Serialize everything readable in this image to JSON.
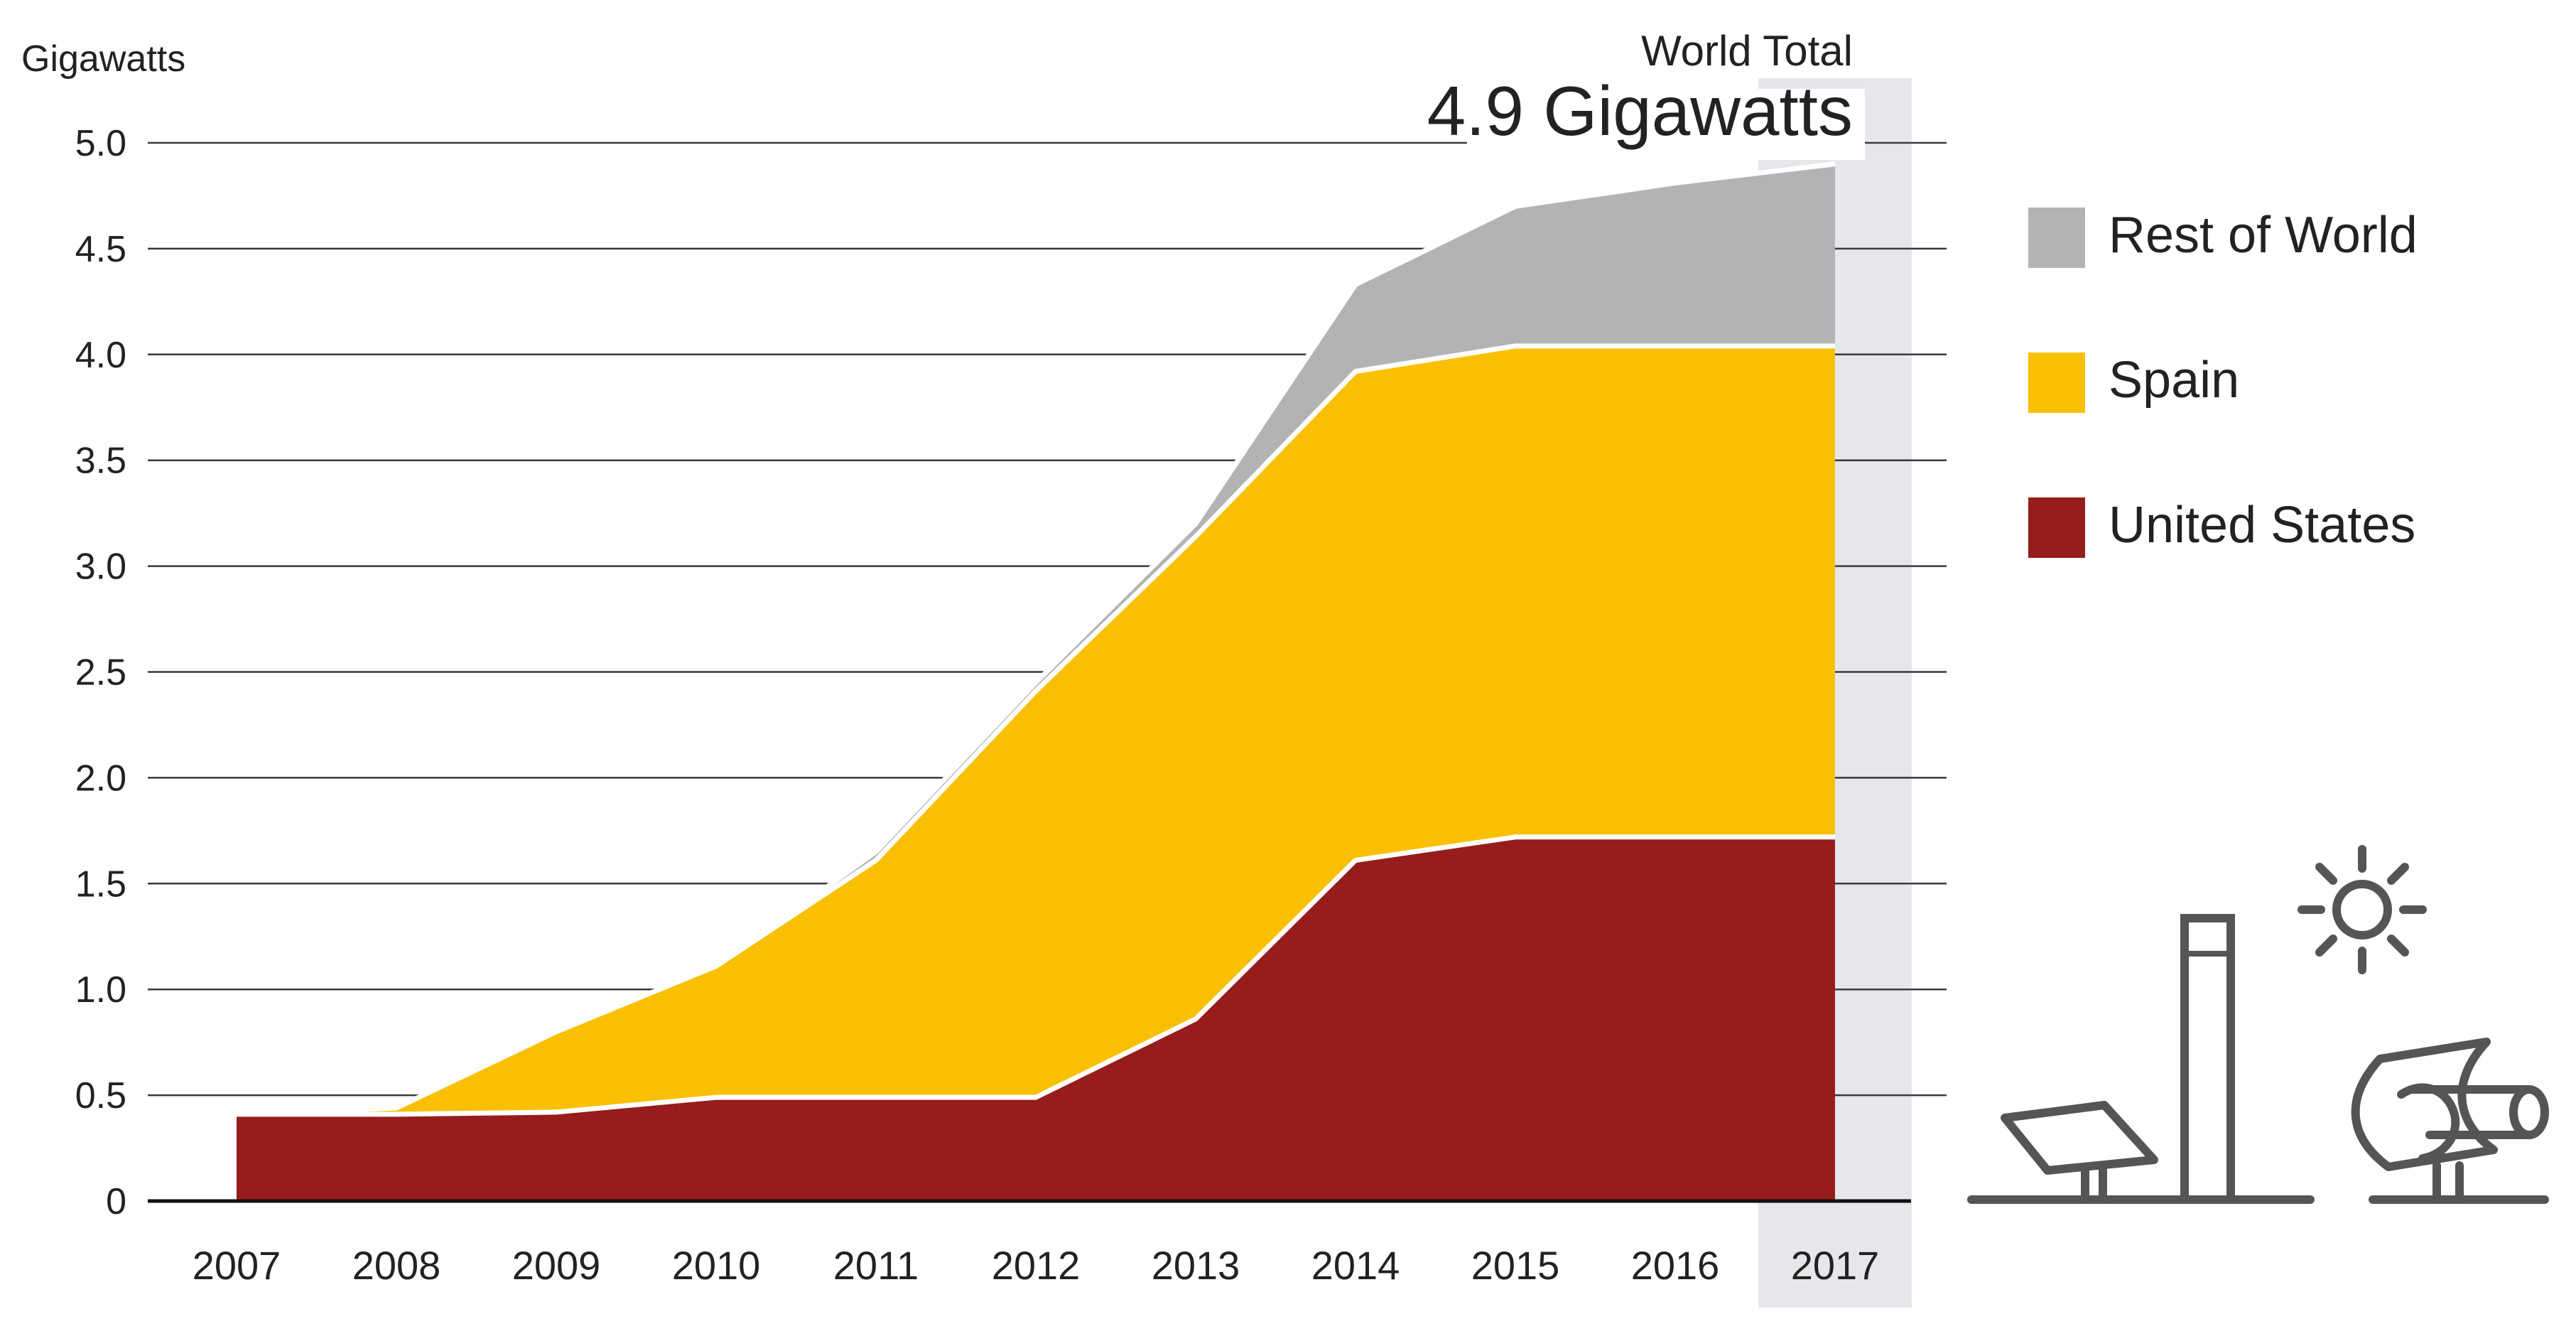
{
  "chart_data": {
    "type": "area",
    "stacked": true,
    "ylabel": "Gigawatts",
    "xlabel": "",
    "ylim": [
      0,
      5.0
    ],
    "y_ticks": [
      0,
      0.5,
      1.0,
      1.5,
      2.0,
      2.5,
      3.0,
      3.5,
      4.0,
      4.5,
      5.0
    ],
    "y_tick_labels": [
      "0",
      "0.5",
      "1.0",
      "1.5",
      "2.0",
      "2.5",
      "3.0",
      "3.5",
      "4.0",
      "4.5",
      "5.0"
    ],
    "categories": [
      "2007",
      "2008",
      "2009",
      "2010",
      "2011",
      "2012",
      "2013",
      "2014",
      "2015",
      "2016",
      "2017"
    ],
    "series": [
      {
        "name": "United States",
        "color": "#971c1c",
        "values": [
          0.41,
          0.41,
          0.42,
          0.49,
          0.49,
          0.49,
          0.86,
          1.61,
          1.72,
          1.72,
          1.72
        ]
      },
      {
        "name": "Spain",
        "color": "#f9c003",
        "values": [
          0.0,
          0.03,
          0.38,
          0.62,
          1.12,
          1.92,
          2.28,
          2.31,
          2.32,
          2.32,
          2.32
        ]
      },
      {
        "name": "Rest of World",
        "color": "#b3b2b4",
        "values": [
          0.0,
          0.0,
          0.0,
          0.0,
          0.04,
          0.04,
          0.06,
          0.41,
          0.66,
          0.77,
          0.86
        ]
      }
    ],
    "legend_order": [
      "Rest of World",
      "Spain",
      "United States"
    ],
    "legend_position": "right",
    "highlight_category": "2017",
    "annotation": {
      "label": "World Total",
      "value": "4.9 Gigawatts"
    },
    "grid": true
  },
  "colors": {
    "background": "#ffffff",
    "grid": "#3a3a3a",
    "highlight_band": "#e5e7ea",
    "icon": "#555555",
    "text": "#222222"
  }
}
